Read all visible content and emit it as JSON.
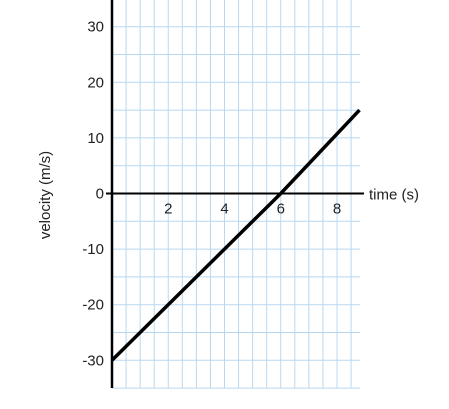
{
  "chart_data": {
    "type": "line",
    "title": "",
    "xlabel": "time (s)",
    "ylabel": "velocity (m/s)",
    "xlim": [
      0,
      8.8
    ],
    "ylim": [
      -35,
      35
    ],
    "x_ticks": [
      2,
      4,
      6,
      8
    ],
    "y_ticks": [
      30,
      20,
      10,
      0,
      -10,
      -20,
      -30
    ],
    "grid": true,
    "series": [
      {
        "x": [
          0,
          6,
          8.8
        ],
        "y": [
          -30,
          0,
          15
        ]
      }
    ],
    "colors": {
      "line": "#000000",
      "grid": "#b9d8f0",
      "axis": "#000000"
    }
  }
}
